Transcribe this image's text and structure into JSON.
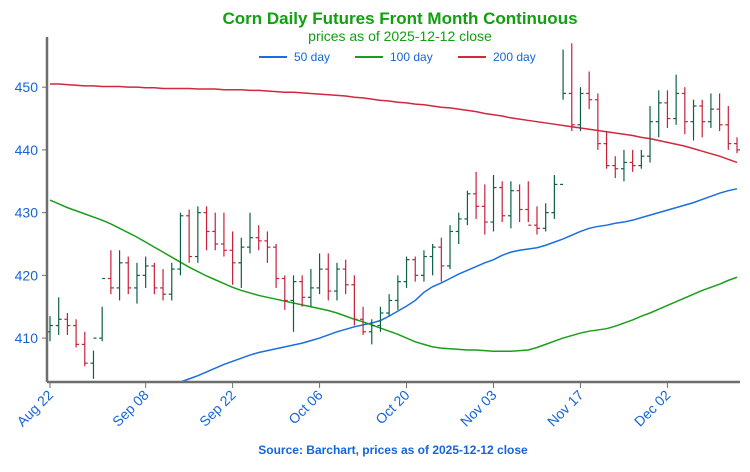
{
  "colors": {
    "title": "#10a010",
    "axis_text": "#1565d8",
    "axis_line": "#6e6e6e",
    "bar_up": "#0e6045",
    "bar_down": "#c8203a",
    "ma50": "#1a6ee0",
    "ma100": "#1a9e1a",
    "ma200": "#d0283e"
  },
  "chart_data": {
    "type": "ohlc",
    "title": "Corn Daily Futures Front Month Continuous",
    "subtitle": "prices as of 2025-12-12 close",
    "source": "Source: Barchart, prices as of 2025-12-12 close",
    "xlabel": "",
    "ylabel": "",
    "ylim": [
      403,
      458
    ],
    "yticks": [
      410,
      420,
      430,
      440,
      450
    ],
    "grid": false,
    "legend_position": "top-center",
    "x_tick_labels": [
      "Aug 22",
      "Sep 08",
      "Sep 22",
      "Oct 06",
      "Oct 20",
      "Nov 03",
      "Nov 17",
      "Dec 02"
    ],
    "x_tick_indices": [
      0,
      11,
      21,
      31,
      41,
      51,
      61,
      71
    ],
    "n_sessions": 80,
    "ohlc_bars": [
      [
        411.0,
        413.5,
        409.5,
        412.0
      ],
      [
        412.0,
        416.5,
        410.5,
        413.0
      ],
      [
        413.0,
        414.0,
        410.5,
        412.0
      ],
      [
        412.0,
        413.0,
        408.5,
        409.0
      ],
      [
        409.0,
        411.0,
        405.5,
        406.0
      ],
      [
        406.0,
        408.0,
        403.5,
        410.0
      ],
      [
        410.0,
        415.0,
        409.5,
        419.5
      ],
      [
        419.5,
        424.0,
        417.0,
        418.0
      ],
      [
        418.0,
        424.0,
        416.0,
        422.0
      ],
      [
        422.0,
        423.0,
        417.0,
        418.0
      ],
      [
        418.0,
        422.0,
        415.5,
        420.0
      ],
      [
        420.0,
        423.0,
        418.0,
        421.5
      ],
      [
        421.5,
        422.0,
        417.0,
        418.0
      ],
      [
        418.0,
        421.0,
        416.0,
        417.0
      ],
      [
        417.0,
        422.0,
        416.0,
        421.0
      ],
      [
        421.0,
        430.0,
        420.0,
        429.5
      ],
      [
        429.5,
        430.5,
        422.0,
        423.0
      ],
      [
        423.0,
        431.0,
        422.0,
        430.0
      ],
      [
        430.0,
        431.0,
        424.0,
        427.0
      ],
      [
        427.0,
        430.0,
        424.0,
        425.0
      ],
      [
        425.0,
        430.0,
        423.0,
        424.0
      ],
      [
        424.0,
        427.0,
        418.5,
        422.0
      ],
      [
        422.0,
        426.0,
        418.0,
        424.5
      ],
      [
        424.5,
        430.0,
        423.5,
        426.0
      ],
      [
        426.0,
        428.0,
        424.0,
        425.5
      ],
      [
        425.5,
        427.0,
        422.0,
        424.5
      ],
      [
        424.5,
        425.0,
        418.0,
        419.5
      ],
      [
        419.5,
        420.0,
        414.5,
        416.0
      ],
      [
        416.0,
        420.0,
        411.0,
        419.0
      ],
      [
        419.0,
        420.0,
        415.0,
        416.5
      ],
      [
        416.5,
        421.0,
        415.0,
        418.0
      ],
      [
        418.0,
        423.5,
        417.0,
        421.0
      ],
      [
        421.0,
        423.5,
        416.0,
        417.5
      ],
      [
        417.5,
        422.0,
        416.0,
        421.0
      ],
      [
        421.0,
        422.5,
        417.0,
        418.5
      ],
      [
        418.5,
        420.0,
        412.0,
        413.0
      ],
      [
        413.0,
        415.0,
        410.5,
        411.0
      ],
      [
        411.0,
        413.0,
        409.0,
        412.0
      ],
      [
        412.0,
        415.0,
        411.0,
        414.0
      ],
      [
        414.0,
        417.0,
        413.5,
        416.0
      ],
      [
        416.0,
        420.0,
        414.5,
        419.0
      ],
      [
        419.0,
        423.0,
        418.0,
        422.5
      ],
      [
        422.5,
        423.0,
        419.0,
        420.0
      ],
      [
        420.0,
        424.0,
        419.0,
        423.0
      ],
      [
        423.0,
        425.0,
        420.0,
        424.5
      ],
      [
        424.5,
        426.0,
        419.0,
        421.5
      ],
      [
        421.5,
        428.0,
        421.0,
        427.0
      ],
      [
        427.0,
        430.0,
        425.0,
        429.0
      ],
      [
        429.0,
        433.5,
        428.0,
        433.0
      ],
      [
        433.0,
        436.5,
        429.0,
        431.0
      ],
      [
        431.0,
        434.5,
        426.5,
        428.5
      ],
      [
        428.5,
        436.0,
        427.0,
        434.0
      ],
      [
        434.0,
        435.0,
        428.5,
        429.5
      ],
      [
        429.5,
        435.0,
        427.5,
        433.5
      ],
      [
        433.5,
        434.5,
        428.5,
        430.5
      ],
      [
        430.5,
        435.0,
        428.5,
        428.0
      ],
      [
        428.0,
        431.0,
        426.5,
        427.5
      ],
      [
        427.5,
        431.5,
        427.0,
        430.0
      ],
      [
        430.0,
        436.0,
        429.0,
        434.5
      ],
      [
        434.5,
        456.0,
        448.0,
        449.0
      ],
      [
        449.0,
        457.0,
        443.0,
        444.0
      ],
      [
        444.0,
        450.0,
        443.0,
        449.0
      ],
      [
        449.0,
        452.5,
        446.5,
        448.0
      ],
      [
        448.0,
        449.0,
        440.0,
        441.0
      ],
      [
        441.0,
        443.0,
        437.0,
        437.5
      ],
      [
        437.5,
        439.0,
        435.5,
        437.0
      ],
      [
        437.0,
        440.0,
        435.0,
        438.0
      ],
      [
        438.0,
        440.0,
        436.5,
        437.5
      ],
      [
        437.5,
        440.0,
        437.0,
        439.0
      ],
      [
        439.0,
        447.0,
        438.0,
        444.5
      ],
      [
        444.5,
        449.5,
        442.0,
        447.5
      ],
      [
        447.5,
        449.5,
        443.5,
        445.0
      ],
      [
        445.0,
        452.0,
        444.0,
        449.0
      ],
      [
        449.0,
        450.0,
        442.5,
        444.5
      ],
      [
        444.5,
        448.0,
        441.5,
        447.0
      ],
      [
        447.0,
        448.0,
        442.0,
        444.5
      ],
      [
        444.5,
        449.0,
        443.5,
        446.5
      ],
      [
        446.5,
        449.0,
        443.0,
        444.0
      ],
      [
        444.0,
        447.0,
        440.0,
        441.0
      ],
      [
        441.0,
        442.0,
        439.5,
        440.0
      ]
    ],
    "series": [
      {
        "name": "50 day",
        "color_key": "ma50",
        "values": [
          null,
          null,
          null,
          null,
          null,
          null,
          null,
          null,
          null,
          null,
          null,
          null,
          null,
          null,
          null,
          403.0,
          403.5,
          404.0,
          404.6,
          405.2,
          405.8,
          406.3,
          406.8,
          407.3,
          407.7,
          408.0,
          408.3,
          408.6,
          408.9,
          409.2,
          409.6,
          410.0,
          410.5,
          411.0,
          411.4,
          411.8,
          412.1,
          412.4,
          412.8,
          413.5,
          414.3,
          415.1,
          416.0,
          417.3,
          418.2,
          418.8,
          419.5,
          420.2,
          420.8,
          421.4,
          422.0,
          422.5,
          423.2,
          423.7,
          424.0,
          424.2,
          424.4,
          424.8,
          425.3,
          425.8,
          426.4,
          427.0,
          427.5,
          427.8,
          428.0,
          428.3,
          428.5,
          428.8,
          429.2,
          429.6,
          430.0,
          430.4,
          430.8,
          431.2,
          431.6,
          432.1,
          432.6,
          433.1,
          433.5,
          433.8
        ]
      },
      {
        "name": "100 day",
        "color_key": "ma100",
        "values": [
          432.0,
          431.4,
          430.8,
          430.3,
          429.8,
          429.3,
          428.8,
          428.2,
          427.5,
          426.8,
          426.1,
          425.3,
          424.5,
          423.7,
          422.9,
          422.1,
          421.3,
          420.6,
          419.9,
          419.3,
          418.7,
          418.1,
          417.6,
          417.2,
          416.8,
          416.5,
          416.2,
          415.9,
          415.6,
          415.3,
          415.0,
          414.7,
          414.4,
          414.0,
          413.5,
          413.0,
          412.6,
          412.1,
          411.6,
          411.1,
          410.6,
          410.0,
          409.4,
          409.0,
          408.6,
          408.4,
          408.3,
          408.2,
          408.1,
          408.1,
          408.0,
          407.9,
          407.9,
          407.9,
          408.0,
          408.1,
          408.5,
          409.0,
          409.5,
          410.0,
          410.4,
          410.8,
          411.1,
          411.3,
          411.5,
          411.9,
          412.4,
          412.9,
          413.5,
          414.0,
          414.6,
          415.2,
          415.8,
          416.4,
          417.0,
          417.6,
          418.1,
          418.6,
          419.2,
          419.7
        ]
      },
      {
        "name": "200 day",
        "color_key": "ma200",
        "values": [
          450.5,
          450.5,
          450.4,
          450.3,
          450.2,
          450.2,
          450.1,
          450.1,
          450.1,
          450.0,
          450.0,
          449.9,
          449.9,
          449.8,
          449.8,
          449.8,
          449.8,
          449.7,
          449.7,
          449.7,
          449.6,
          449.6,
          449.6,
          449.5,
          449.5,
          449.4,
          449.3,
          449.2,
          449.2,
          449.1,
          449.0,
          448.9,
          448.8,
          448.7,
          448.6,
          448.4,
          448.3,
          448.1,
          447.9,
          447.8,
          447.6,
          447.5,
          447.3,
          447.2,
          447.0,
          446.8,
          446.7,
          446.5,
          446.3,
          446.1,
          445.8,
          445.6,
          445.4,
          445.1,
          444.9,
          444.7,
          444.5,
          444.3,
          444.1,
          443.9,
          443.7,
          443.5,
          443.3,
          443.1,
          442.9,
          442.7,
          442.5,
          442.3,
          442.0,
          441.8,
          441.5,
          441.2,
          440.9,
          440.6,
          440.2,
          439.8,
          439.4,
          439.0,
          438.5,
          438.0
        ]
      }
    ]
  }
}
